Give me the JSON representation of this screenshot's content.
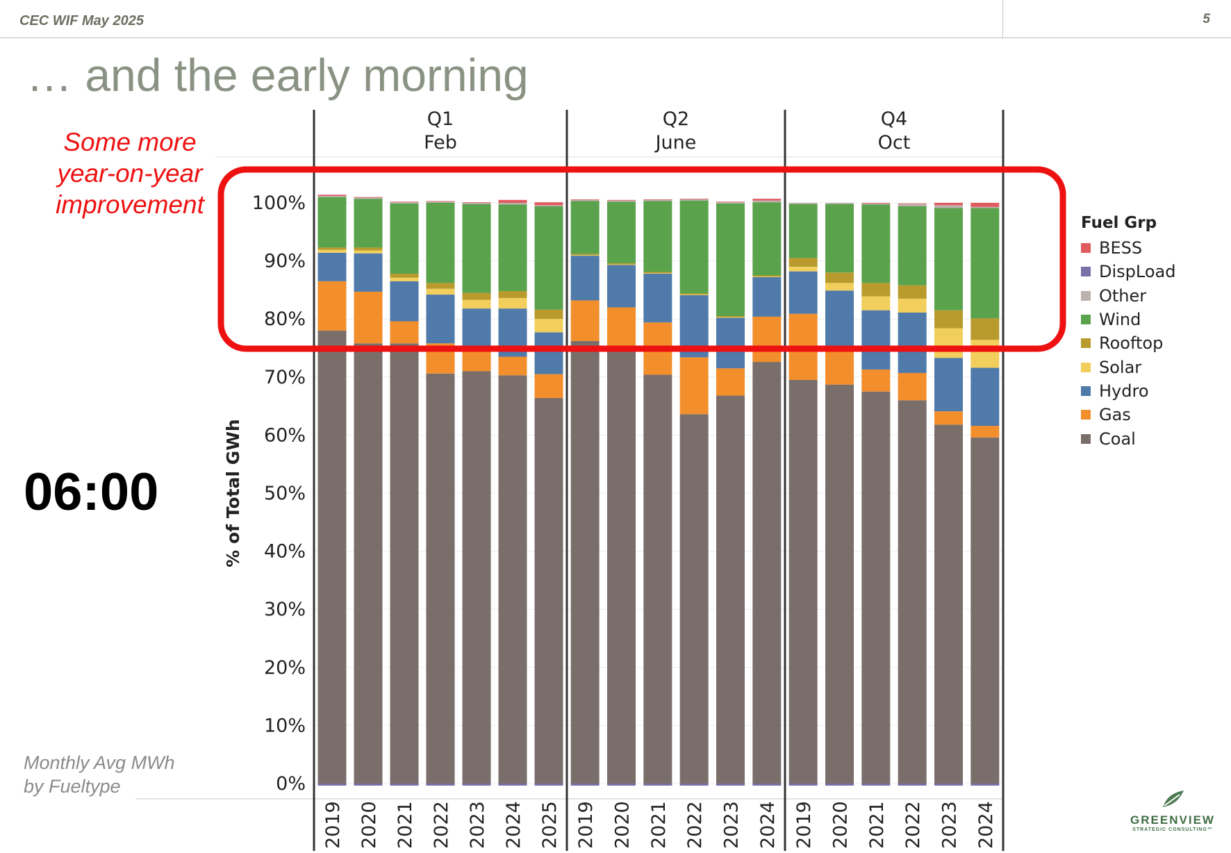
{
  "header": {
    "left_text": "CEC WIF May 2025",
    "page_number": "5"
  },
  "slide": {
    "title": "… and the early morning",
    "callout": "Some more year-on-year improvement",
    "time_label": "06:00",
    "footnote_line1": "Monthly Avg MWh",
    "footnote_line2": "by Fueltype"
  },
  "logo": {
    "name": "GREENVIEW",
    "sub": "STRATEGIC CONSULTING™"
  },
  "colors": {
    "BESS": "#e05a5e",
    "DispLoad": "#7b6fa8",
    "Other": "#bdb1ad",
    "Wind": "#5aa24c",
    "Rooftop": "#b89a2d",
    "Solar": "#f2cf5c",
    "Hydro": "#4f7aa9",
    "Gas": "#f28e2b",
    "Coal": "#7a6e6b",
    "highlight": "#ee1111"
  },
  "chart_data": {
    "type": "bar",
    "stacked": true,
    "ylabel": "% of Total GWh",
    "ylim": [
      0,
      100
    ],
    "yticks": [
      "0%",
      "10%",
      "20%",
      "30%",
      "40%",
      "50%",
      "60%",
      "70%",
      "80%",
      "90%",
      "100%"
    ],
    "legend_title": "Fuel Grp",
    "legend_position": "right",
    "legend": [
      "BESS",
      "DispLoad",
      "Other",
      "Wind",
      "Rooftop",
      "Solar",
      "Hydro",
      "Gas",
      "Coal"
    ],
    "stack_order": [
      "Coal",
      "Gas",
      "Hydro",
      "Solar",
      "Rooftop",
      "Wind",
      "Other",
      "BESS"
    ],
    "panels": [
      {
        "quarter": "Q1",
        "month": "Feb",
        "bars": [
          {
            "year": "2019",
            "Coal": 78.0,
            "Gas": 8.5,
            "Hydro": 4.9,
            "Solar": 0.5,
            "Rooftop": 0.4,
            "Wind": 8.7,
            "Other": 0.2,
            "BESS": 0.2
          },
          {
            "year": "2020",
            "Coal": 75.8,
            "Gas": 8.9,
            "Hydro": 6.6,
            "Solar": 0.5,
            "Rooftop": 0.5,
            "Wind": 8.4,
            "Other": 0.2,
            "BESS": 0.1
          },
          {
            "year": "2021",
            "Coal": 75.8,
            "Gas": 3.8,
            "Hydro": 6.9,
            "Solar": 0.6,
            "Rooftop": 0.7,
            "Wind": 12.1,
            "Other": 0.2,
            "BESS": 0.1
          },
          {
            "year": "2022",
            "Coal": 70.6,
            "Gas": 5.2,
            "Hydro": 8.4,
            "Solar": 1.0,
            "Rooftop": 1.0,
            "Wind": 13.8,
            "Other": 0.2,
            "BESS": 0.1
          },
          {
            "year": "2023",
            "Coal": 71.0,
            "Gas": 3.6,
            "Hydro": 7.2,
            "Solar": 1.5,
            "Rooftop": 1.2,
            "Wind": 15.3,
            "Other": 0.2,
            "BESS": 0.1
          },
          {
            "year": "2024",
            "Coal": 70.3,
            "Gas": 3.2,
            "Hydro": 8.3,
            "Solar": 1.8,
            "Rooftop": 1.2,
            "Wind": 14.9,
            "Other": 0.3,
            "BESS": 0.5
          },
          {
            "year": "2025",
            "Coal": 66.4,
            "Gas": 4.1,
            "Hydro": 7.2,
            "Solar": 2.3,
            "Rooftop": 1.6,
            "Wind": 17.8,
            "Other": 0.2,
            "BESS": 0.5
          }
        ]
      },
      {
        "quarter": "Q2",
        "month": "June",
        "bars": [
          {
            "year": "2019",
            "Coal": 76.2,
            "Gas": 7.0,
            "Hydro": 7.7,
            "Solar": 0.1,
            "Rooftop": 0.2,
            "Wind": 9.1,
            "Other": 0.2,
            "BESS": 0.1
          },
          {
            "year": "2020",
            "Coal": 74.8,
            "Gas": 7.2,
            "Hydro": 7.3,
            "Solar": 0.1,
            "Rooftop": 0.2,
            "Wind": 10.6,
            "Other": 0.2,
            "BESS": 0.1
          },
          {
            "year": "2021",
            "Coal": 70.4,
            "Gas": 9.0,
            "Hydro": 8.4,
            "Solar": 0.1,
            "Rooftop": 0.2,
            "Wind": 12.2,
            "Other": 0.2,
            "BESS": 0.1
          },
          {
            "year": "2022",
            "Coal": 63.6,
            "Gas": 9.8,
            "Hydro": 10.7,
            "Solar": 0.1,
            "Rooftop": 0.2,
            "Wind": 16.0,
            "Other": 0.2,
            "BESS": 0.1
          },
          {
            "year": "2023",
            "Coal": 66.8,
            "Gas": 4.7,
            "Hydro": 8.7,
            "Solar": 0.1,
            "Rooftop": 0.2,
            "Wind": 19.4,
            "Other": 0.2,
            "BESS": 0.1
          },
          {
            "year": "2024",
            "Coal": 72.6,
            "Gas": 7.8,
            "Hydro": 6.8,
            "Solar": 0.1,
            "Rooftop": 0.2,
            "Wind": 12.6,
            "Other": 0.3,
            "BESS": 0.3
          }
        ]
      },
      {
        "quarter": "Q4",
        "month": "Oct",
        "bars": [
          {
            "year": "2019",
            "Coal": 69.5,
            "Gas": 11.4,
            "Hydro": 7.3,
            "Solar": 0.8,
            "Rooftop": 1.5,
            "Wind": 9.3,
            "Other": 0.2,
            "BESS": 0.0
          },
          {
            "year": "2020",
            "Coal": 68.7,
            "Gas": 6.7,
            "Hydro": 9.5,
            "Solar": 1.3,
            "Rooftop": 1.8,
            "Wind": 11.8,
            "Other": 0.2,
            "BESS": 0.0
          },
          {
            "year": "2021",
            "Coal": 67.5,
            "Gas": 3.8,
            "Hydro": 10.2,
            "Solar": 2.4,
            "Rooftop": 2.3,
            "Wind": 13.5,
            "Other": 0.2,
            "BESS": 0.1
          },
          {
            "year": "2022",
            "Coal": 66.0,
            "Gas": 4.7,
            "Hydro": 10.4,
            "Solar": 2.4,
            "Rooftop": 2.3,
            "Wind": 13.6,
            "Other": 0.4,
            "BESS": 0.1
          },
          {
            "year": "2023",
            "Coal": 61.8,
            "Gas": 2.3,
            "Hydro": 9.2,
            "Solar": 5.1,
            "Rooftop": 3.1,
            "Wind": 17.6,
            "Other": 0.5,
            "BESS": 0.4
          },
          {
            "year": "2024",
            "Coal": 59.6,
            "Gas": 2.0,
            "Hydro": 10.0,
            "Solar": 4.8,
            "Rooftop": 3.7,
            "Wind": 19.0,
            "Other": 0.2,
            "BESS": 0.7
          }
        ]
      }
    ]
  }
}
